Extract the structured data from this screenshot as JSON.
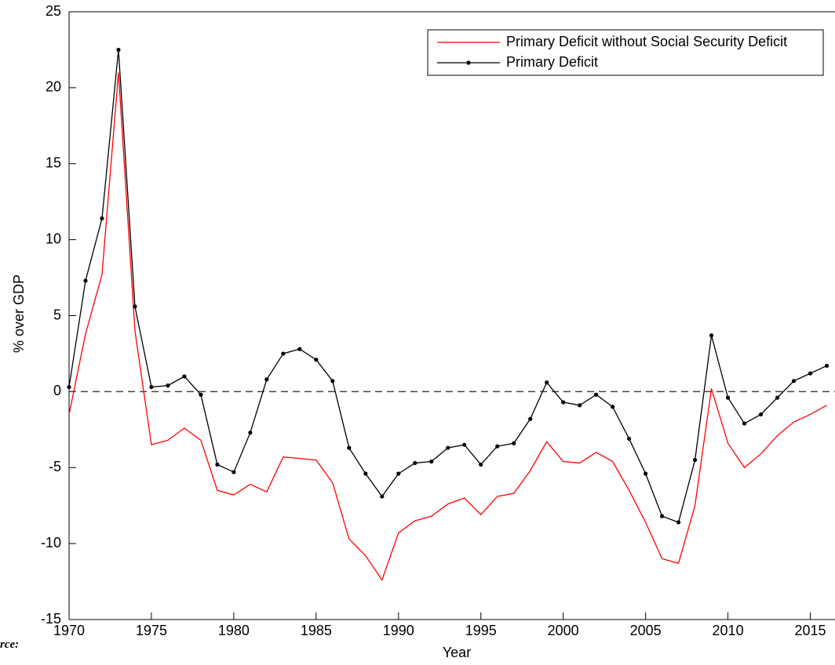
{
  "chart_data": {
    "type": "line",
    "x_label": "Year",
    "y_label": "% over GDP",
    "note": "rce:",
    "x": [
      1970,
      1971,
      1972,
      1973,
      1974,
      1975,
      1976,
      1977,
      1978,
      1979,
      1980,
      1981,
      1982,
      1983,
      1984,
      1985,
      1986,
      1987,
      1988,
      1989,
      1990,
      1991,
      1992,
      1993,
      1994,
      1995,
      1996,
      1997,
      1998,
      1999,
      2000,
      2001,
      2002,
      2003,
      2004,
      2005,
      2006,
      2007,
      2008,
      2009,
      2010,
      2011,
      2012,
      2013,
      2014,
      2015,
      2016
    ],
    "series": [
      {
        "name": "Primary Deficit without Social Security Deficit",
        "color": "#ff0000",
        "marker": false,
        "values": [
          -1.5,
          3.8,
          7.7,
          21.0,
          4.0,
          -3.5,
          -3.2,
          -2.4,
          -3.2,
          -6.5,
          -6.8,
          -6.1,
          -6.6,
          -4.3,
          -4.4,
          -4.5,
          -6.0,
          -9.7,
          -10.8,
          -12.4,
          -9.3,
          -8.5,
          -8.2,
          -7.4,
          -7.0,
          -8.1,
          -6.9,
          -6.7,
          -5.2,
          -3.3,
          -4.6,
          -4.7,
          -4.0,
          -4.6,
          -6.5,
          -8.6,
          -11.0,
          -11.3,
          -7.5,
          0.2,
          -3.4,
          -5.0,
          -4.1,
          -2.9,
          -2.0,
          -1.5,
          -0.9
        ]
      },
      {
        "name": "Primary Deficit",
        "color": "#000000",
        "marker": true,
        "values": [
          0.3,
          7.3,
          11.4,
          22.5,
          5.6,
          0.3,
          0.4,
          1.0,
          -0.2,
          -4.8,
          -5.3,
          -2.7,
          0.8,
          2.5,
          2.8,
          2.1,
          0.7,
          -3.7,
          -5.4,
          -6.9,
          -5.4,
          -4.7,
          -4.6,
          -3.7,
          -3.5,
          -4.8,
          -3.6,
          -3.4,
          -1.8,
          0.6,
          -0.7,
          -0.9,
          -0.2,
          -1.0,
          -3.1,
          -5.4,
          -8.2,
          -8.6,
          -4.5,
          3.7,
          -0.4,
          -2.1,
          -1.5,
          -0.4,
          0.7,
          1.2,
          1.7
        ]
      }
    ],
    "xlim": [
      1970,
      2016.5
    ],
    "xticks": [
      1970,
      1975,
      1980,
      1985,
      1990,
      1995,
      2000,
      2005,
      2010,
      2015
    ],
    "ylim": [
      -15,
      25
    ],
    "yticks": [
      -15,
      -10,
      -5,
      0,
      5,
      10,
      15,
      20,
      25
    ],
    "reference_line": 0,
    "legend": "upper right",
    "grid": false
  }
}
